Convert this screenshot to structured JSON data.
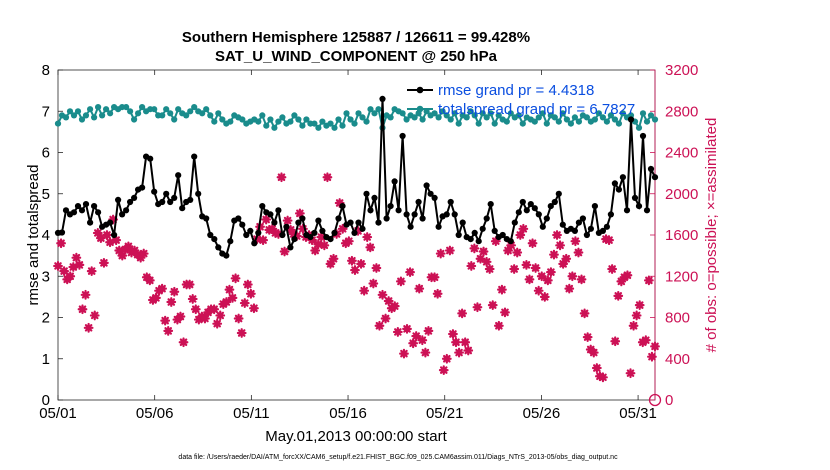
{
  "chart_data": {
    "type": "line",
    "title_line1": "Southern Hemisphere 125887 / 126611 = 99.428%",
    "title_line2": "SAT_U_WIND_COMPONENT @ 250 hPa",
    "xlabel": "May.01,2013 00:00:00 start",
    "ylabel_left": "rmse and totalspread",
    "ylabel_right": "# of obs: o=possible; ×=assimilated",
    "footer": "data file: /Users/raeder/DAI/ATM_forcXX/CAM6_setup/f.e21.FHIST_BGC.f09_025.CAM6assim.011/Diags_NTrS_2013-05/obs_diag_output.nc",
    "x_ticks": [
      "05/01",
      "05/06",
      "05/11",
      "05/16",
      "05/21",
      "05/26",
      "05/31"
    ],
    "x_tick_days": [
      0,
      5,
      10,
      15,
      20,
      25,
      30
    ],
    "xlim": [
      0,
      30.875
    ],
    "y_left_ticks": [
      "0",
      "1",
      "2",
      "3",
      "4",
      "5",
      "6",
      "7",
      "8"
    ],
    "ylim_left": [
      0,
      8
    ],
    "y_right_ticks": [
      "0",
      "400",
      "800",
      "1200",
      "1600",
      "2000",
      "2400",
      "2800",
      "3200"
    ],
    "ylim_right": [
      0,
      3200
    ],
    "colors": {
      "rmse": "#000000",
      "spread": "#1a8c8c",
      "obs": "#cc1155",
      "right_axis": "#cc1155",
      "legend_text": "#0a4ee0"
    },
    "series": [
      {
        "name": "rmse grand pr = 4.4318",
        "values": [
          4.05,
          4.06,
          4.6,
          4.5,
          4.55,
          4.7,
          4.6,
          4.75,
          4.3,
          4.7,
          4.55,
          4.2,
          4.25,
          4.3,
          4.0,
          4.85,
          4.5,
          4.6,
          4.8,
          4.9,
          5.1,
          5.15,
          5.9,
          5.85,
          5.05,
          4.75,
          4.8,
          5.0,
          4.8,
          4.9,
          5.45,
          4.65,
          4.8,
          4.85,
          5.9,
          5.0,
          4.45,
          4.4,
          4.0,
          3.9,
          3.7,
          3.55,
          3.5,
          3.85,
          4.35,
          4.4,
          4.25,
          4.0,
          4.1,
          3.8,
          4.05,
          4.7,
          4.55,
          4.5,
          4.3,
          4.6,
          4.0,
          4.2,
          3.7,
          3.9,
          4.3,
          4.4,
          4.0,
          3.95,
          4.05,
          4.35,
          4.1,
          3.95,
          3.9,
          4.05,
          4.4,
          4.7,
          4.25,
          4.3,
          4.05,
          4.3,
          4.15,
          5.0,
          4.6,
          4.9,
          4.3,
          7.3,
          4.4,
          4.7,
          5.3,
          4.6,
          6.4,
          4.5,
          4.2,
          4.5,
          4.8,
          4.4,
          5.2,
          5.0,
          4.9,
          4.2,
          4.45,
          4.5,
          4.8,
          4.5,
          4.0,
          4.3,
          3.95,
          3.9,
          4.05,
          3.85,
          4.15,
          4.4,
          4.75,
          4.1,
          3.95,
          4.0,
          3.9,
          3.85,
          4.3,
          4.55,
          4.8,
          4.6,
          4.75,
          4.65,
          4.5,
          4.2,
          4.4,
          4.7,
          4.8,
          5.0,
          4.25,
          4.1,
          4.15,
          4.1,
          4.3,
          4.4,
          4.0,
          4.15,
          4.7,
          4.05,
          4.1,
          4.2,
          4.5,
          5.25,
          5.1,
          5.4,
          4.6,
          6.8,
          4.9,
          4.7,
          6.4,
          4.6,
          5.6,
          5.4
        ]
      },
      {
        "name": "totalspread grand pr = 6.7827",
        "values": [
          6.7,
          6.9,
          6.85,
          7.0,
          6.9,
          7.0,
          6.8,
          6.9,
          7.05,
          6.85,
          7.1,
          6.9,
          7.05,
          6.95,
          7.1,
          7.05,
          7.1,
          7.1,
          7.0,
          6.8,
          6.95,
          7.1,
          7.0,
          7.05,
          7.05,
          6.9,
          6.9,
          7.05,
          6.95,
          6.8,
          7.05,
          6.95,
          6.9,
          7.0,
          7.1,
          7.0,
          6.95,
          7.05,
          6.9,
          6.75,
          6.95,
          6.8,
          6.7,
          6.75,
          6.9,
          6.85,
          6.8,
          6.7,
          6.75,
          6.8,
          6.75,
          6.9,
          6.65,
          6.8,
          6.6,
          6.75,
          6.85,
          6.7,
          6.75,
          6.9,
          6.8,
          6.65,
          6.8,
          6.7,
          6.7,
          6.6,
          6.75,
          6.65,
          6.7,
          6.6,
          6.8,
          6.65,
          6.95,
          6.8,
          6.7,
          6.95,
          6.85,
          6.75,
          7.05,
          6.95,
          7.05,
          6.6,
          6.9,
          6.85,
          7.05,
          7.0,
          6.95,
          6.8,
          6.9,
          6.85,
          6.95,
          6.8,
          7.0,
          6.9,
          6.95,
          6.85,
          7.0,
          6.9,
          6.8,
          6.95,
          6.7,
          6.9,
          6.85,
          7.0,
          6.9,
          6.7,
          6.95,
          6.85,
          6.95,
          6.7,
          6.9,
          6.8,
          6.75,
          6.95,
          6.85,
          6.9,
          6.7,
          6.85,
          6.8,
          6.75,
          6.85,
          6.95,
          6.7,
          6.9,
          6.85,
          6.75,
          6.95,
          6.8,
          6.7,
          6.85,
          6.75,
          6.9,
          6.85,
          6.75,
          6.8,
          6.95,
          6.85,
          6.75,
          6.9,
          6.8,
          6.7,
          6.95,
          6.85,
          6.9,
          6.75,
          6.6,
          6.95,
          6.75,
          6.9,
          6.8
        ]
      }
    ],
    "obs_assimilated": [
      1300,
      1520,
      1250,
      1170,
      1200,
      1290,
      1380,
      1310,
      880,
      1020,
      700,
      1250,
      820,
      1620,
      1570,
      1330,
      1600,
      1530,
      1750,
      1550,
      1450,
      1400,
      1460,
      1490,
      1430,
      1450,
      1410,
      1380,
      1420,
      1190,
      1160,
      970,
      990,
      1060,
      1080,
      770,
      670,
      950,
      1050,
      780,
      810,
      560,
      1120,
      1120,
      980,
      880,
      780,
      810,
      790,
      850,
      880,
      880,
      740,
      820,
      930,
      950,
      1070,
      990,
      1180,
      790,
      650,
      940,
      1120,
      1030,
      890,
      1560,
      1680,
      1550,
      1750,
      1650,
      1660,
      1620,
      1610,
      2160,
      1440,
      1740,
      1650,
      1610,
      1590,
      1810,
      1660,
      1580,
      1600,
      1550,
      1450,
      1510,
      1580,
      1500,
      2160,
      1320,
      1370,
      1610,
      1910,
      1660,
      1520,
      1540,
      1350,
      1260,
      1640,
      1320,
      1060,
      1580,
      1480,
      1130,
      1280,
      720,
      1020,
      790,
      960,
      890,
      910,
      660,
      1150,
      450,
      690,
      1240,
      550,
      620,
      1080,
      580,
      460,
      670,
      1190,
      1190,
      1030,
      1420,
      290,
      400,
      1450,
      640,
      560,
      460,
      840,
      560,
      480,
      1300,
      1470,
      900,
      1370,
      1440,
      1340,
      1270,
      920,
      1540,
      720,
      1070,
      850,
      1450,
      1500,
      1270,
      1430,
      1600,
      1660,
      1310,
      1170,
      1520,
      1280,
      1060,
      1200,
      1000,
      1160,
      1240,
      1410,
      1600,
      1500,
      1320,
      1370,
      1080,
      1200,
      1540,
      1430,
      1170,
      840,
      610,
      490,
      460,
      310,
      230,
      220,
      1560,
      1550,
      1270,
      570,
      1010,
      1150,
      1190,
      1210,
      260,
      720,
      820,
      920,
      560,
      580,
      1160,
      420,
      520
    ],
    "obs_possible_min": 0
  }
}
